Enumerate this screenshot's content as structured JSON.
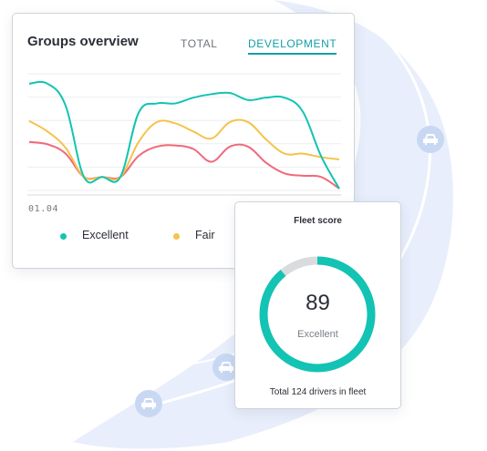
{
  "groups_overview": {
    "title": "Groups overview",
    "tabs": [
      {
        "label": "TOTAL",
        "active": false
      },
      {
        "label": "DEVELOPMENT",
        "active": true
      }
    ],
    "x_label": "01.04"
  },
  "chart_data": {
    "type": "line",
    "x": [
      0,
      1,
      2,
      3,
      4,
      5,
      6,
      7,
      8,
      9,
      10,
      11,
      12,
      13,
      14,
      15,
      16,
      17
    ],
    "series": [
      {
        "name": "Excellent",
        "color": "#13c3b3",
        "values": [
          90,
          90,
          71,
          10,
          10,
          10,
          65,
          73,
          73,
          78,
          81,
          82,
          76,
          78,
          78,
          66,
          28,
          0
        ]
      },
      {
        "name": "Fair",
        "color": "#f5c34b",
        "values": [
          58,
          49,
          35,
          10,
          10,
          10,
          40,
          57,
          56,
          49,
          43,
          57,
          57,
          42,
          30,
          30,
          27,
          25
        ]
      },
      {
        "name": "",
        "color": "#ef6a79",
        "values": [
          40,
          38,
          30,
          10,
          10,
          10,
          28,
          36,
          37,
          34,
          23,
          36,
          36,
          22,
          13,
          11,
          10,
          0
        ]
      }
    ],
    "ylim": [
      0,
      100
    ],
    "grid": true
  },
  "legend": [
    {
      "label": "Excellent",
      "color": "#13c3b3"
    },
    {
      "label": "Fair",
      "color": "#f5c34b"
    }
  ],
  "fleet_score": {
    "title": "Fleet score",
    "score": "89",
    "score_value": 89,
    "rating": "Excellent",
    "footer": "Total 124 drivers in fleet",
    "ring_color": "#13c3b3",
    "track_color": "#d9dcdf"
  },
  "icons": [
    "car-icon",
    "car-icon",
    "car-icon"
  ]
}
